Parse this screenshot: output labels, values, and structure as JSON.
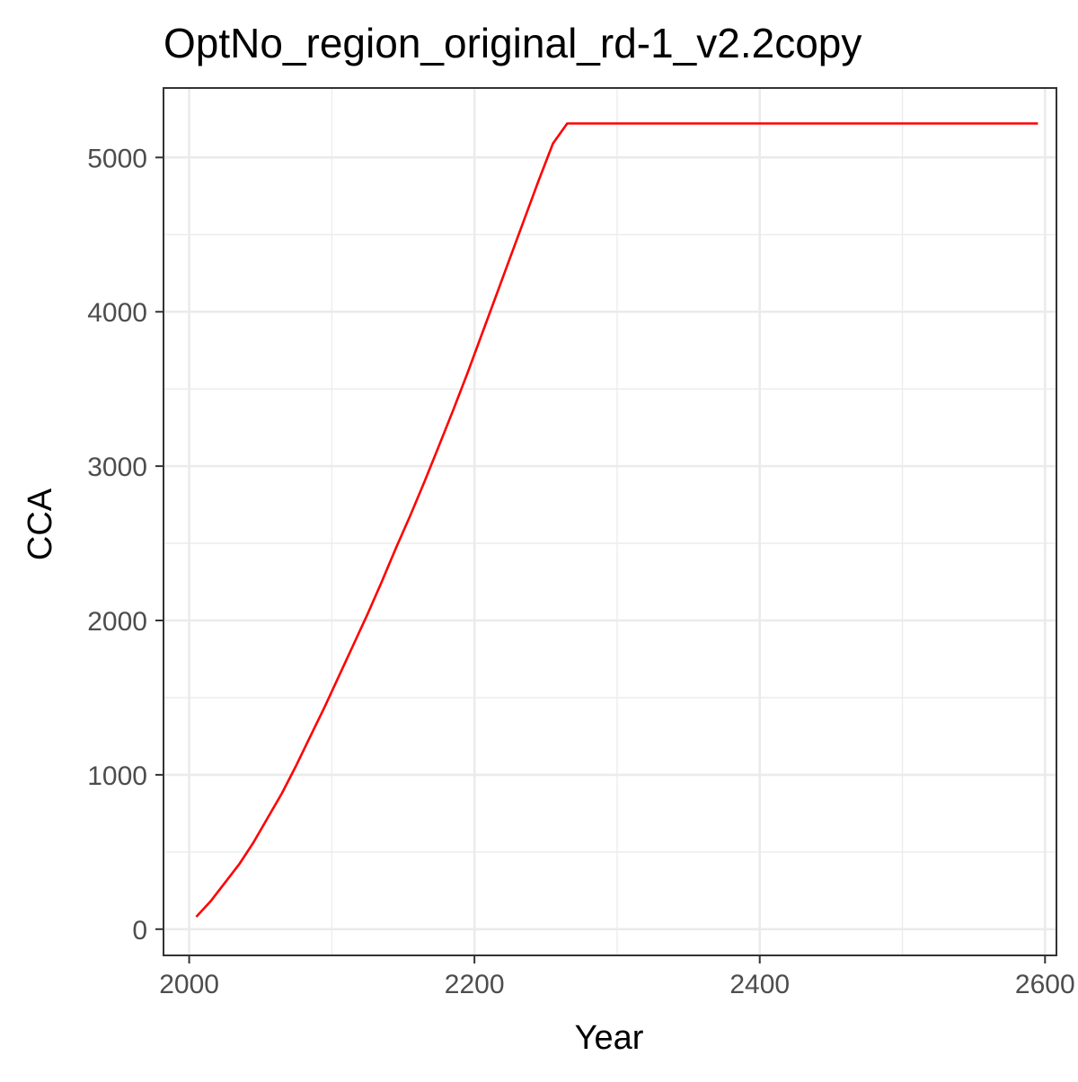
{
  "chart_data": {
    "type": "line",
    "title": "OptNo_region_original_rd-1_v2.2copy",
    "xlabel": "Year",
    "ylabel": "CCA",
    "xlim": [
      1982,
      2608
    ],
    "ylim": [
      -170,
      5450
    ],
    "x_ticks": [
      2000,
      2200,
      2400,
      2600
    ],
    "x_tick_labels": [
      "2000",
      "2200",
      "2400",
      "2600"
    ],
    "x_minor_ticks": [
      2100,
      2300,
      2500
    ],
    "y_ticks": [
      0,
      1000,
      2000,
      3000,
      4000,
      5000
    ],
    "y_tick_labels": [
      "0",
      "1000",
      "2000",
      "3000",
      "4000",
      "5000"
    ],
    "y_minor_ticks": [
      500,
      1500,
      2500,
      3500,
      4500
    ],
    "grid": true,
    "series": [
      {
        "color": "#ff0000",
        "x": [
          2005,
          2015,
          2025,
          2035,
          2045,
          2055,
          2065,
          2075,
          2085,
          2095,
          2105,
          2115,
          2125,
          2135,
          2145,
          2155,
          2165,
          2175,
          2185,
          2195,
          2205,
          2215,
          2225,
          2235,
          2245,
          2255,
          2265,
          2300,
          2400,
          2500,
          2595
        ],
        "y": [
          80,
          180,
          300,
          420,
          560,
          720,
          880,
          1060,
          1250,
          1440,
          1640,
          1840,
          2040,
          2250,
          2470,
          2680,
          2900,
          3130,
          3360,
          3600,
          3850,
          4100,
          4350,
          4600,
          4850,
          5090,
          5220,
          5220,
          5220,
          5220,
          5220
        ]
      }
    ]
  }
}
